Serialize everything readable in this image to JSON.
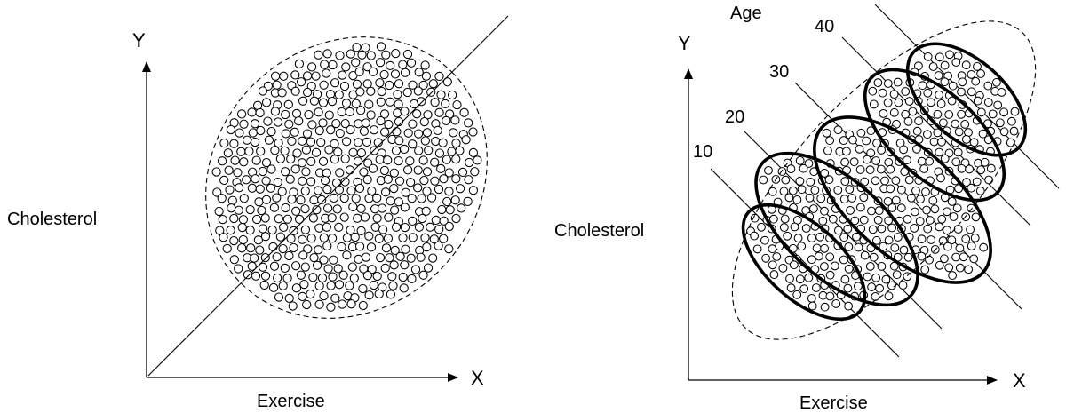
{
  "left_panel": {
    "y_axis_label": "Y",
    "x_axis_label": "X",
    "y_variable": "Cholesterol",
    "x_variable": "Exercise"
  },
  "right_panel": {
    "y_axis_label": "Y",
    "x_axis_label": "X",
    "y_variable": "Cholesterol",
    "x_variable": "Exercise",
    "group_variable": "Age",
    "age_groups": [
      {
        "label": "10"
      },
      {
        "label": "20"
      },
      {
        "label": "30"
      },
      {
        "label": "40"
      }
    ]
  }
}
